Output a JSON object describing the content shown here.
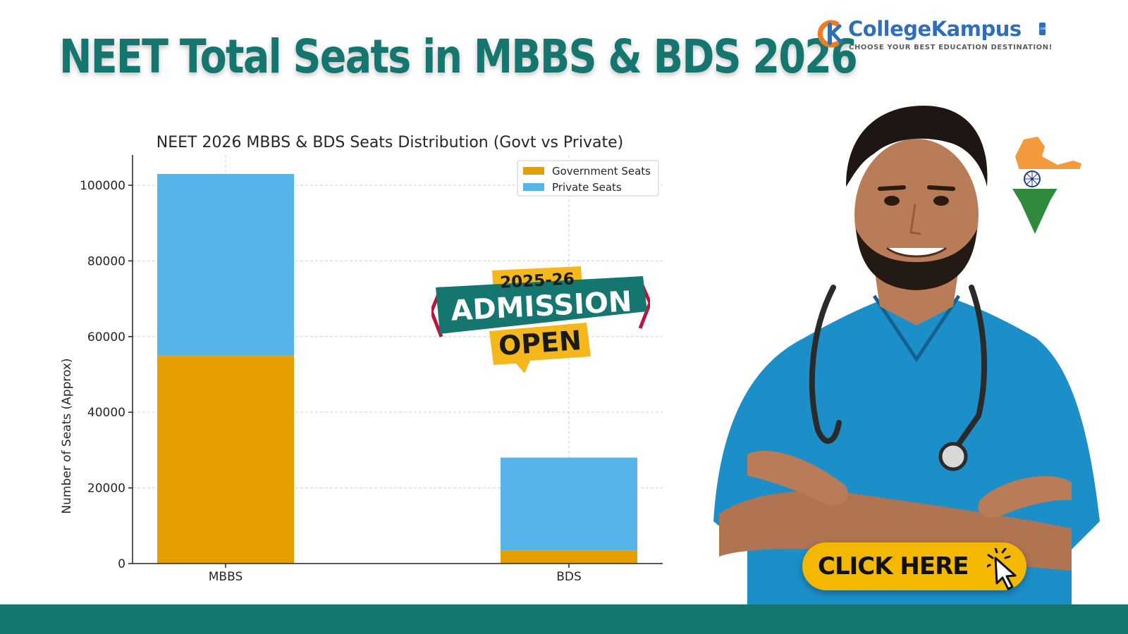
{
  "header": {
    "title": "NEET Total Seats in MBBS & BDS 2026"
  },
  "logo": {
    "name_part1": "College",
    "name_part2": "Kampus",
    "domain_badge": ".com",
    "tagline": "CHOOSE YOUR BEST EDUCATION DESTINATION!"
  },
  "badge": {
    "year": "2025-26",
    "line1": "ADMISSION",
    "line2": "OPEN"
  },
  "cta": {
    "label": "CLICK HERE"
  },
  "icons": {
    "logo": "collegekampus-logo-icon",
    "map": "india-map-icon",
    "cursor": "cursor-click-icon",
    "stethoscope": "stethoscope-icon",
    "doctor": "doctor-illustration"
  },
  "colors": {
    "title": "#14766e",
    "government": "#e69f00",
    "private": "#56b4e9",
    "brand_teal": "#14766e",
    "brand_orange": "#f07b20",
    "brand_blue": "#2f6fb7",
    "badge_gold": "#f5b81c",
    "badge_crimson": "#b5173e",
    "cta_yellow": "#f5b800",
    "scrubs": "#1c8fc9"
  },
  "chart_data": {
    "type": "bar",
    "stacked": true,
    "title": "NEET 2026 MBBS & BDS Seats Distribution (Govt vs Private)",
    "xlabel": "",
    "ylabel": "Number of Seats (Approx)",
    "categories": [
      "MBBS",
      "BDS"
    ],
    "series": [
      {
        "name": "Government Seats",
        "values": [
          55000,
          3500
        ]
      },
      {
        "name": "Private Seats",
        "values": [
          48000,
          24500
        ]
      }
    ],
    "ylim": [
      0,
      108000
    ],
    "yticks": [
      0,
      20000,
      40000,
      60000,
      80000,
      100000
    ],
    "ytick_labels": [
      "0",
      "20000",
      "40000",
      "60000",
      "80000",
      "100000"
    ],
    "grid": true,
    "legend": "top-right"
  }
}
